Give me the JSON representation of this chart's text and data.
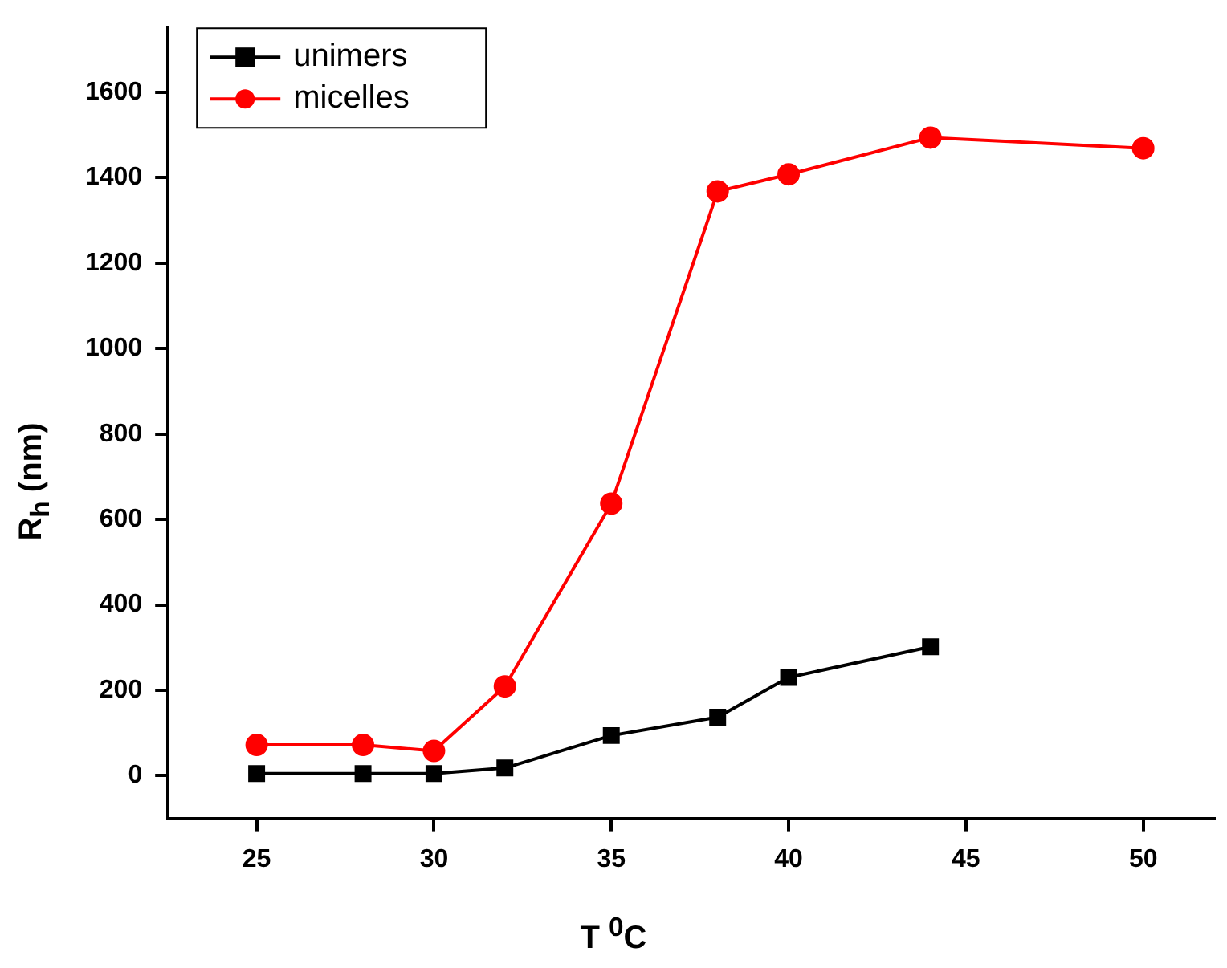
{
  "chart_data": {
    "type": "line",
    "xlabel": "T $^{0}$C",
    "ylabel": "R$_{h}$ (nm)",
    "xlim": [
      22.5,
      52
    ],
    "xticks": [
      25,
      30,
      35,
      40,
      45,
      50
    ],
    "ylim": [
      -100,
      1750
    ],
    "yticks": [
      0,
      200,
      400,
      600,
      800,
      1000,
      1200,
      1400,
      1600
    ],
    "grid": false,
    "legend": "top left",
    "line_style": "solid",
    "series": [
      {
        "name": "unimers",
        "color": "#000000",
        "marker": "square",
        "x": [
          25,
          28,
          30,
          32,
          35,
          38,
          40,
          44
        ],
        "values": [
          5,
          5,
          5,
          18,
          94,
          137,
          230,
          302
        ]
      },
      {
        "name": "micelles",
        "color": "#ff0000",
        "marker": "circle",
        "x": [
          25,
          28,
          30,
          32,
          35,
          38,
          40,
          44,
          50
        ],
        "values": [
          72,
          72,
          58,
          209,
          637,
          1368,
          1408,
          1494,
          1469
        ]
      }
    ]
  }
}
